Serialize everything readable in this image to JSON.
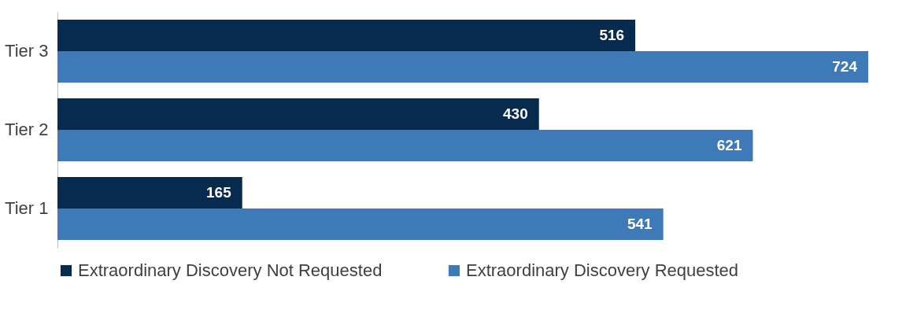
{
  "chart_data": {
    "type": "bar",
    "orientation": "horizontal",
    "categories": [
      "Tier 3",
      "Tier 2",
      "Tier 1"
    ],
    "series": [
      {
        "name": "Extraordinary Discovery Not Requested",
        "color": "#062b4f",
        "values": [
          516,
          430,
          165
        ]
      },
      {
        "name": "Extraordinary Discovery Requested",
        "color": "#3f7ab8",
        "values": [
          724,
          621,
          541
        ]
      }
    ],
    "data_labels": true,
    "legend": "bottom",
    "grid": false
  }
}
